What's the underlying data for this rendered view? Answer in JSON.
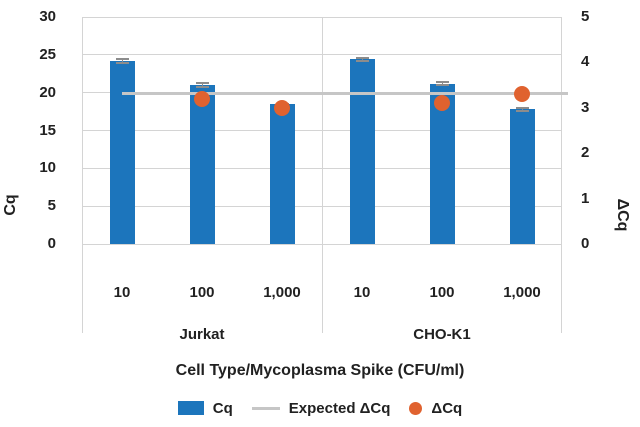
{
  "chart_data": {
    "type": "bar",
    "title": "",
    "xlabel": "Cell Type/Mycoplasma Spike (CFU/ml)",
    "left_axis": {
      "label": "Cq",
      "min": 0,
      "max": 30,
      "ticks": [
        0,
        5,
        10,
        15,
        20,
        25,
        30
      ]
    },
    "right_axis": {
      "label": "ΔCq",
      "min": 0,
      "max": 5,
      "ticks": [
        0,
        1,
        2,
        3,
        4,
        5
      ]
    },
    "grid": true,
    "legend_position": "bottom",
    "groups": [
      {
        "label": "Jurkat",
        "categories": [
          "10",
          "100",
          "1,000"
        ]
      },
      {
        "label": "CHO-K1",
        "categories": [
          "10",
          "100",
          "1,000"
        ]
      }
    ],
    "series": [
      {
        "name": "Cq",
        "type": "bar",
        "axis": "left",
        "color": "#1c75bc",
        "values": [
          24.2,
          21.0,
          18.5,
          24.4,
          21.2,
          17.9
        ],
        "errors": [
          0.35,
          0.4,
          0.15,
          0.25,
          0.35,
          0.25
        ]
      },
      {
        "name": "Expected ΔCq",
        "type": "line",
        "axis": "right",
        "color": "#c6c6c6",
        "value": 3.32
      },
      {
        "name": "ΔCq",
        "type": "scatter",
        "axis": "right",
        "color": "#e0622f",
        "values": [
          null,
          3.2,
          3.0,
          null,
          3.1,
          3.3
        ]
      }
    ],
    "error_bar_color": "#8c8c8c",
    "text_color": "#212121",
    "gridline_color": "#d4d4d4"
  }
}
